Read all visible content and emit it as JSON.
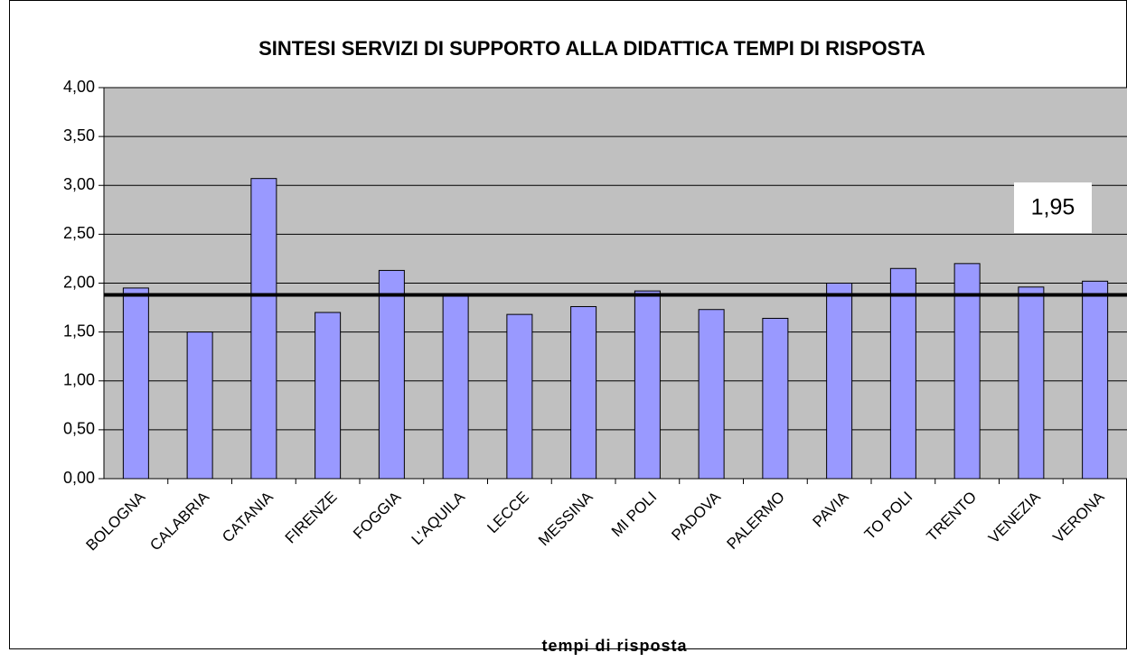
{
  "chart_data": {
    "type": "bar",
    "title": "SINTESI SERVIZI DI SUPPORTO ALLA DIDATTICA TEMPI DI RISPOSTA",
    "x_label": "tempi di risposta",
    "categories": [
      "BOLOGNA",
      "CALABRIA",
      "CATANIA",
      "FIRENZE",
      "FOGGIA",
      "L'AQUILA",
      "LECCE",
      "MESSINA",
      "MI POLI",
      "PADOVA",
      "PALERMO",
      "PAVIA",
      "TO POLI",
      "TRENTO",
      "VENEZIA",
      "VERONA"
    ],
    "values": [
      1.95,
      1.5,
      3.07,
      1.7,
      2.13,
      1.88,
      1.68,
      1.76,
      1.92,
      1.73,
      1.64,
      2.0,
      2.15,
      2.2,
      1.96,
      2.02
    ],
    "color": "#9999ff",
    "reference_line": 1.88,
    "annotation": "1,95",
    "ylim": [
      0,
      4
    ],
    "yticks": [
      {
        "value": 0,
        "label": "0,00"
      },
      {
        "value": 0.5,
        "label": "0,50"
      },
      {
        "value": 1,
        "label": "1,00"
      },
      {
        "value": 1.5,
        "label": "1,50"
      },
      {
        "value": 2,
        "label": "2,00"
      },
      {
        "value": 2.5,
        "label": "2,50"
      },
      {
        "value": 3,
        "label": "3,00"
      },
      {
        "value": 3.5,
        "label": "3,50"
      },
      {
        "value": 4,
        "label": "4,00"
      }
    ],
    "grid": true
  }
}
